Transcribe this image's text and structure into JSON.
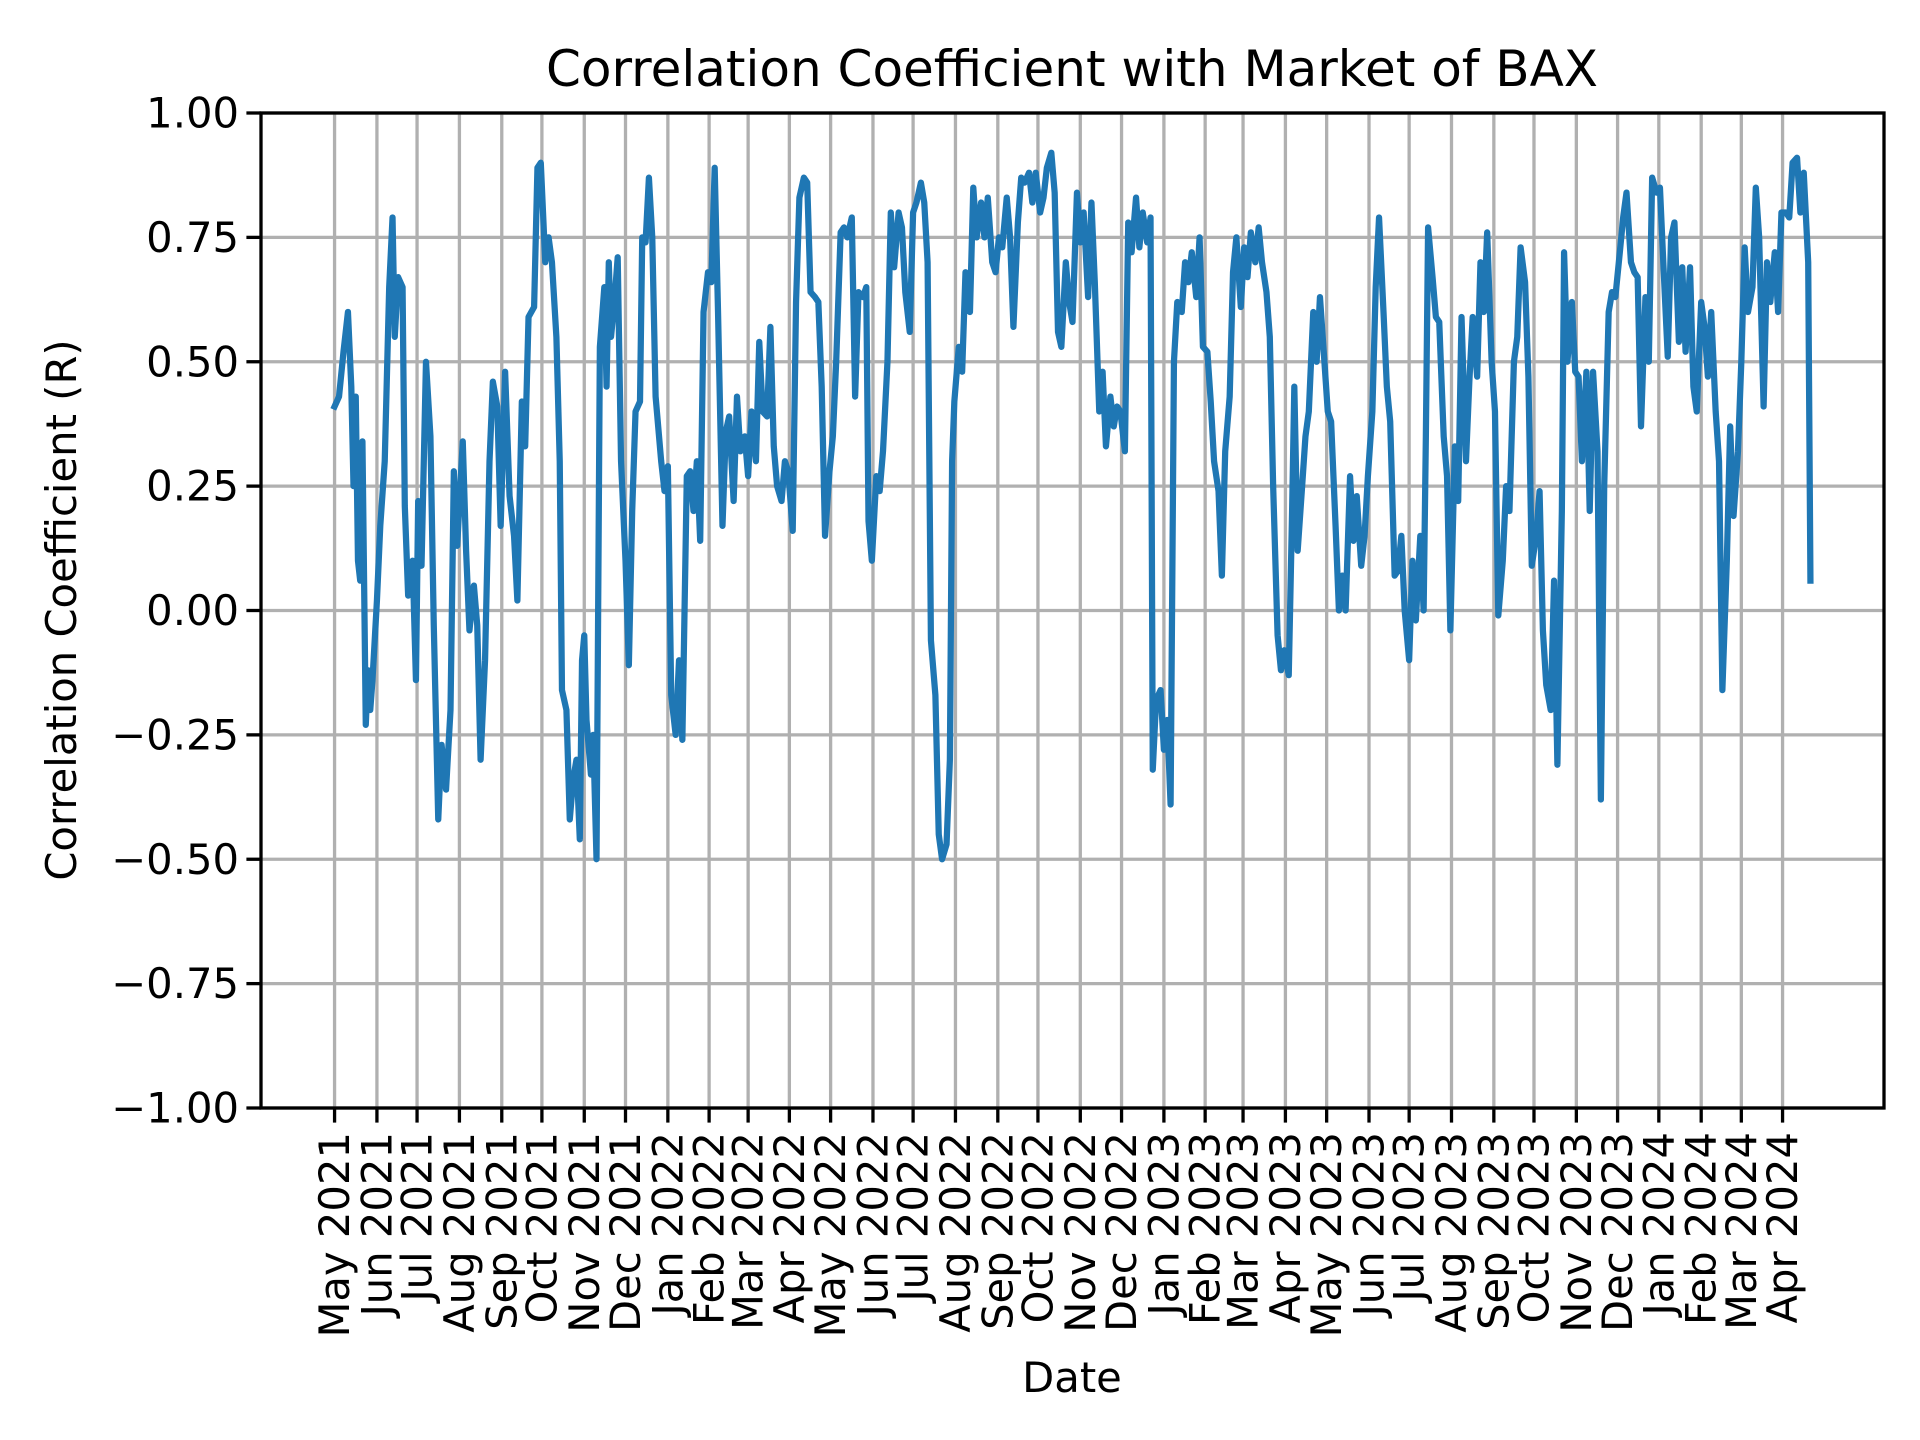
{
  "chart_data": {
    "type": "line",
    "title": "Correlation Coefficient with Market of BAX",
    "xlabel": "Date",
    "ylabel": "Correlation Coefficient (R)",
    "color": "#1f77b4",
    "grid": true,
    "xlim": [
      -66,
      1390
    ],
    "ylim": [
      -1,
      1
    ],
    "xticks": [
      {
        "value": 0,
        "label": "May 2021"
      },
      {
        "value": 38,
        "label": "Jun 2021"
      },
      {
        "value": 74,
        "label": "Jul 2021"
      },
      {
        "value": 112,
        "label": "Aug 2021"
      },
      {
        "value": 150,
        "label": "Sep 2021"
      },
      {
        "value": 186,
        "label": "Oct 2021"
      },
      {
        "value": 224,
        "label": "Nov 2021"
      },
      {
        "value": 261,
        "label": "Dec 2021"
      },
      {
        "value": 299,
        "label": "Jan 2022"
      },
      {
        "value": 336,
        "label": "Feb 2022"
      },
      {
        "value": 371,
        "label": "Mar 2022"
      },
      {
        "value": 408,
        "label": "Apr 2022"
      },
      {
        "value": 445,
        "label": "May 2022"
      },
      {
        "value": 483,
        "label": "Jun 2022"
      },
      {
        "value": 519,
        "label": "Jul 2022"
      },
      {
        "value": 557,
        "label": "Aug 2022"
      },
      {
        "value": 595,
        "label": "Sep 2022"
      },
      {
        "value": 631,
        "label": "Oct 2022"
      },
      {
        "value": 669,
        "label": "Nov 2022"
      },
      {
        "value": 706,
        "label": "Dec 2022"
      },
      {
        "value": 744,
        "label": "Jan 2023"
      },
      {
        "value": 781,
        "label": "Feb 2023"
      },
      {
        "value": 815,
        "label": "Mar 2023"
      },
      {
        "value": 853,
        "label": "Apr 2023"
      },
      {
        "value": 890,
        "label": "May 2023"
      },
      {
        "value": 928,
        "label": "Jun 2023"
      },
      {
        "value": 964,
        "label": "Jul 2023"
      },
      {
        "value": 1002,
        "label": "Aug 2023"
      },
      {
        "value": 1040,
        "label": "Sep 2023"
      },
      {
        "value": 1076,
        "label": "Oct 2023"
      },
      {
        "value": 1114,
        "label": "Nov 2023"
      },
      {
        "value": 1151,
        "label": "Dec 2023"
      },
      {
        "value": 1188,
        "label": "Jan 2024"
      },
      {
        "value": 1226,
        "label": "Feb 2024"
      },
      {
        "value": 1262,
        "label": "Mar 2024"
      },
      {
        "value": 1299,
        "label": "Apr 2024"
      }
    ],
    "yticks": [
      {
        "value": -1,
        "label": "−1.00"
      },
      {
        "value": -0.75,
        "label": "−0.75"
      },
      {
        "value": -0.5,
        "label": "−0.50"
      },
      {
        "value": -0.25,
        "label": "−0.25"
      },
      {
        "value": 0,
        "label": "0.00"
      },
      {
        "value": 0.25,
        "label": "0.25"
      },
      {
        "value": 0.5,
        "label": "0.50"
      },
      {
        "value": 0.75,
        "label": "0.75"
      },
      {
        "value": 1,
        "label": "1.00"
      }
    ],
    "x": [
      0,
      4,
      8,
      12,
      15,
      17,
      19,
      21,
      23,
      25,
      28,
      30,
      32,
      34,
      38,
      41,
      45,
      49,
      52,
      54,
      57,
      61,
      63,
      66,
      70,
      73,
      75,
      78,
      82,
      86,
      89,
      93,
      96,
      100,
      104,
      107,
      110,
      115,
      118,
      121,
      125,
      128,
      131,
      135,
      139,
      142,
      146,
      149,
      153,
      157,
      161,
      164,
      168,
      171,
      174,
      179,
      182,
      185,
      189,
      192,
      195,
      199,
      202,
      204,
      208,
      211,
      214,
      217,
      220,
      222,
      224,
      226,
      230,
      232,
      235,
      238,
      242,
      244,
      246,
      248,
      251,
      254,
      257,
      261,
      264,
      267,
      270,
      274,
      276,
      279,
      282,
      285,
      288,
      293,
      296,
      299,
      302,
      306,
      309,
      312,
      316,
      319,
      322,
      325,
      328,
      331,
      335,
      338,
      341,
      344,
      348,
      351,
      354,
      358,
      361,
      364,
      368,
      371,
      374,
      378,
      381,
      384,
      388,
      391,
      394,
      397,
      401,
      404,
      407,
      411,
      414,
      417,
      421,
      424,
      427,
      431,
      434,
      437,
      440,
      444,
      447,
      450,
      454,
      457,
      460,
      464,
      467,
      470,
      474,
      477,
      479,
      482,
      486,
      489,
      492,
      496,
      499,
      502,
      506,
      509,
      512,
      516,
      519,
      522,
      526,
      529,
      532,
      535,
      539,
      542,
      545,
      549,
      552,
      554,
      556,
      560,
      563,
      566,
      570,
      573,
      576,
      580,
      583,
      586,
      590,
      593,
      596,
      599,
      603,
      606,
      609,
      613,
      616,
      619,
      623,
      626,
      629,
      633,
      636,
      639,
      643,
      646,
      649,
      652,
      656,
      659,
      662,
      666,
      669,
      672,
      676,
      679,
      682,
      686,
      689,
      692,
      696,
      699,
      702,
      705,
      709,
      712,
      715,
      719,
      722,
      725,
      729,
      732,
      734,
      737,
      741,
      744,
      747,
      750,
      753,
      756,
      760,
      763,
      766,
      769,
      773,
      776,
      779,
      783,
      786,
      789,
      793,
      796,
      799,
      803,
      806,
      809,
      813,
      816,
      819,
      822,
      826,
      829,
      832,
      836,
      839,
      842,
      846,
      849,
      852,
      856,
      859,
      861,
      864,
      868,
      871,
      874,
      878,
      881,
      884,
      888,
      891,
      894,
      898,
      901,
      904,
      907,
      911,
      914,
      917,
      921,
      924,
      927,
      931,
      934,
      937,
      941,
      944,
      947,
      951,
      954,
      957,
      960,
      964,
      967,
      970,
      974,
      977,
      979,
      981,
      985,
      988,
      991,
      995,
      998,
      1001,
      1005,
      1008,
      1011,
      1015,
      1018,
      1021,
      1025,
      1028,
      1031,
      1034,
      1038,
      1041,
      1044,
      1048,
      1051,
      1054,
      1058,
      1061,
      1064,
      1068,
      1071,
      1074,
      1078,
      1081,
      1084,
      1087,
      1091,
      1094,
      1097,
      1101,
      1103,
      1106,
      1110,
      1113,
      1116,
      1119,
      1123,
      1126,
      1129,
      1133,
      1136,
      1139,
      1143,
      1146,
      1149,
      1153,
      1156,
      1159,
      1163,
      1166,
      1169,
      1172,
      1176,
      1179,
      1182,
      1186,
      1189,
      1192,
      1196,
      1199,
      1202,
      1206,
      1209,
      1212,
      1216,
      1219,
      1222,
      1226,
      1229,
      1232,
      1235,
      1239,
      1242,
      1245,
      1249,
      1252,
      1255,
      1259,
      1262,
      1265,
      1268,
      1272,
      1275,
      1278,
      1282,
      1285,
      1288,
      1292,
      1295,
      1298,
      1302,
      1305,
      1308,
      1312,
      1315,
      1318,
      1322,
      1324
    ],
    "values": [
      0.41,
      0.43,
      0.52,
      0.6,
      0.45,
      0.25,
      0.43,
      0.1,
      0.06,
      0.34,
      -0.23,
      -0.12,
      -0.2,
      -0.14,
      0.02,
      0.17,
      0.3,
      0.65,
      0.79,
      0.55,
      0.67,
      0.65,
      0.21,
      0.03,
      0.1,
      -0.14,
      0.22,
      0.09,
      0.5,
      0.35,
      -0.03,
      -0.42,
      -0.27,
      -0.36,
      -0.2,
      0.28,
      0.13,
      0.34,
      0.12,
      -0.04,
      0.05,
      -0.03,
      -0.3,
      -0.1,
      0.3,
      0.46,
      0.41,
      0.17,
      0.48,
      0.23,
      0.15,
      0.02,
      0.42,
      0.33,
      0.59,
      0.61,
      0.89,
      0.9,
      0.7,
      0.75,
      0.7,
      0.55,
      0.3,
      -0.16,
      -0.2,
      -0.42,
      -0.34,
      -0.3,
      -0.46,
      -0.1,
      -0.05,
      -0.22,
      -0.33,
      -0.25,
      -0.5,
      0.53,
      0.65,
      0.45,
      0.7,
      0.55,
      0.62,
      0.71,
      0.3,
      0.1,
      -0.11,
      0.2,
      0.4,
      0.42,
      0.75,
      0.74,
      0.87,
      0.75,
      0.43,
      0.3,
      0.24,
      0.29,
      -0.17,
      -0.25,
      -0.1,
      -0.26,
      0.27,
      0.28,
      0.2,
      0.3,
      0.14,
      0.6,
      0.68,
      0.66,
      0.89,
      0.6,
      0.17,
      0.36,
      0.39,
      0.22,
      0.43,
      0.32,
      0.35,
      0.27,
      0.4,
      0.3,
      0.54,
      0.4,
      0.39,
      0.57,
      0.33,
      0.25,
      0.22,
      0.3,
      0.28,
      0.16,
      0.62,
      0.83,
      0.87,
      0.86,
      0.64,
      0.63,
      0.62,
      0.45,
      0.15,
      0.28,
      0.35,
      0.5,
      0.76,
      0.77,
      0.75,
      0.79,
      0.43,
      0.64,
      0.63,
      0.65,
      0.18,
      0.1,
      0.27,
      0.24,
      0.32,
      0.5,
      0.8,
      0.69,
      0.8,
      0.77,
      0.64,
      0.56,
      0.8,
      0.82,
      0.86,
      0.82,
      0.7,
      -0.06,
      -0.17,
      -0.45,
      -0.5,
      -0.47,
      -0.3,
      0.3,
      0.42,
      0.53,
      0.48,
      0.68,
      0.6,
      0.85,
      0.75,
      0.82,
      0.75,
      0.83,
      0.7,
      0.68,
      0.75,
      0.73,
      0.83,
      0.75,
      0.57,
      0.78,
      0.87,
      0.86,
      0.88,
      0.82,
      0.88,
      0.8,
      0.83,
      0.89,
      0.92,
      0.84,
      0.56,
      0.53,
      0.7,
      0.62,
      0.58,
      0.84,
      0.74,
      0.8,
      0.63,
      0.82,
      0.66,
      0.4,
      0.48,
      0.33,
      0.43,
      0.37,
      0.41,
      0.4,
      0.32,
      0.78,
      0.72,
      0.83,
      0.73,
      0.8,
      0.74,
      0.79,
      -0.32,
      -0.18,
      -0.16,
      -0.28,
      -0.22,
      -0.39,
      0.5,
      0.62,
      0.6,
      0.7,
      0.66,
      0.72,
      0.63,
      0.75,
      0.53,
      0.52,
      0.42,
      0.3,
      0.24,
      0.07,
      0.32,
      0.43,
      0.68,
      0.75,
      0.61,
      0.73,
      0.67,
      0.76,
      0.7,
      0.77,
      0.7,
      0.64,
      0.55,
      0.25,
      -0.05,
      -0.12,
      -0.08,
      -0.13,
      0.2,
      0.45,
      0.12,
      0.25,
      0.35,
      0.4,
      0.6,
      0.5,
      0.63,
      0.5,
      0.4,
      0.38,
      0.17,
      0,
      0.07,
      0,
      0.27,
      0.14,
      0.23,
      0.09,
      0.15,
      0.27,
      0.4,
      0.65,
      0.79,
      0.6,
      0.45,
      0.38,
      0.07,
      0.08,
      0.15,
      0,
      -0.1,
      0.1,
      -0.02,
      0.15,
      0,
      0.35,
      0.77,
      0.67,
      0.59,
      0.58,
      0.35,
      0.27,
      -0.04,
      0.33,
      0.22,
      0.59,
      0.3,
      0.46,
      0.59,
      0.47,
      0.7,
      0.6,
      0.76,
      0.5,
      0.4,
      -0.01,
      0.1,
      0.25,
      0.2,
      0.5,
      0.55,
      0.73,
      0.66,
      0.47,
      0.09,
      0.15,
      0.24,
      -0.04,
      -0.15,
      -0.2,
      0.06,
      -0.31,
      0.2,
      0.72,
      0.5,
      0.62,
      0.48,
      0.47,
      0.3,
      0.48,
      0.2,
      0.48,
      0.32,
      -0.38,
      0.25,
      0.6,
      0.64,
      0.63,
      0.72,
      0.79,
      0.84,
      0.7,
      0.68,
      0.67,
      0.37,
      0.63,
      0.5,
      0.87,
      0.84,
      0.85,
      0.7,
      0.51,
      0.75,
      0.78,
      0.54,
      0.69,
      0.52,
      0.69,
      0.45,
      0.4,
      0.62,
      0.57,
      0.47,
      0.6,
      0.4,
      0.3,
      -0.16,
      0.1,
      0.37,
      0.19,
      0.32,
      0.5,
      0.73,
      0.6,
      0.65,
      0.85,
      0.75,
      0.41,
      0.7,
      0.62,
      0.72,
      0.6,
      0.8,
      0.8,
      0.79,
      0.9,
      0.91,
      0.8,
      0.88,
      0.7,
      0.06
    ]
  }
}
